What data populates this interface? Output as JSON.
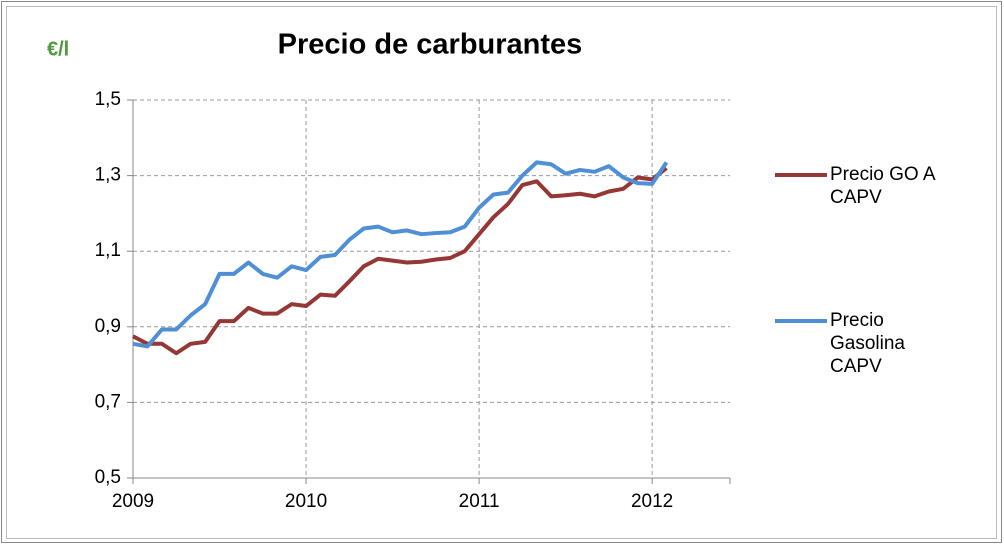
{
  "chart_data": {
    "type": "line",
    "title": "Precio de carburantes",
    "y_label": "€/l",
    "x": [
      2009,
      2009.083,
      2009.167,
      2009.25,
      2009.333,
      2009.417,
      2009.5,
      2009.583,
      2009.667,
      2009.75,
      2009.833,
      2009.917,
      2010,
      2010.083,
      2010.167,
      2010.25,
      2010.333,
      2010.417,
      2010.5,
      2010.583,
      2010.667,
      2010.75,
      2010.833,
      2010.917,
      2011,
      2011.083,
      2011.167,
      2011.25,
      2011.333,
      2011.417,
      2011.5,
      2011.583,
      2011.667,
      2011.75,
      2011.833,
      2011.917,
      2012,
      2012.083
    ],
    "series": [
      {
        "name": "Precio GO A CAPV",
        "color": "#953735",
        "values": [
          0.875,
          0.855,
          0.855,
          0.83,
          0.855,
          0.86,
          0.915,
          0.915,
          0.95,
          0.935,
          0.935,
          0.96,
          0.955,
          0.985,
          0.982,
          1.02,
          1.06,
          1.08,
          1.075,
          1.07,
          1.072,
          1.078,
          1.082,
          1.1,
          1.145,
          1.19,
          1.225,
          1.275,
          1.285,
          1.245,
          1.248,
          1.252,
          1.245,
          1.258,
          1.265,
          1.295,
          1.29,
          1.32
        ]
      },
      {
        "name": "Precio Gasolina CAPV",
        "color": "#4f8fd6",
        "values": [
          0.855,
          0.848,
          0.893,
          0.893,
          0.93,
          0.96,
          1.04,
          1.04,
          1.07,
          1.04,
          1.03,
          1.06,
          1.05,
          1.085,
          1.09,
          1.13,
          1.16,
          1.165,
          1.15,
          1.155,
          1.145,
          1.148,
          1.15,
          1.165,
          1.215,
          1.25,
          1.255,
          1.3,
          1.335,
          1.33,
          1.305,
          1.315,
          1.31,
          1.325,
          1.295,
          1.28,
          1.278,
          1.335
        ]
      }
    ],
    "xlim": [
      2009,
      2012.45
    ],
    "xticks": [
      2009,
      2010,
      2011,
      2012
    ],
    "ylim": [
      0.5,
      1.5
    ],
    "yticks": [
      {
        "value": 0.5,
        "label": "0,5"
      },
      {
        "value": 0.7,
        "label": "0,7"
      },
      {
        "value": 0.9,
        "label": "0,9"
      },
      {
        "value": 1.1,
        "label": "1,1"
      },
      {
        "value": 1.3,
        "label": "1,3"
      },
      {
        "value": 1.5,
        "label": "1,5"
      }
    ],
    "grid": true,
    "legend": "right"
  }
}
